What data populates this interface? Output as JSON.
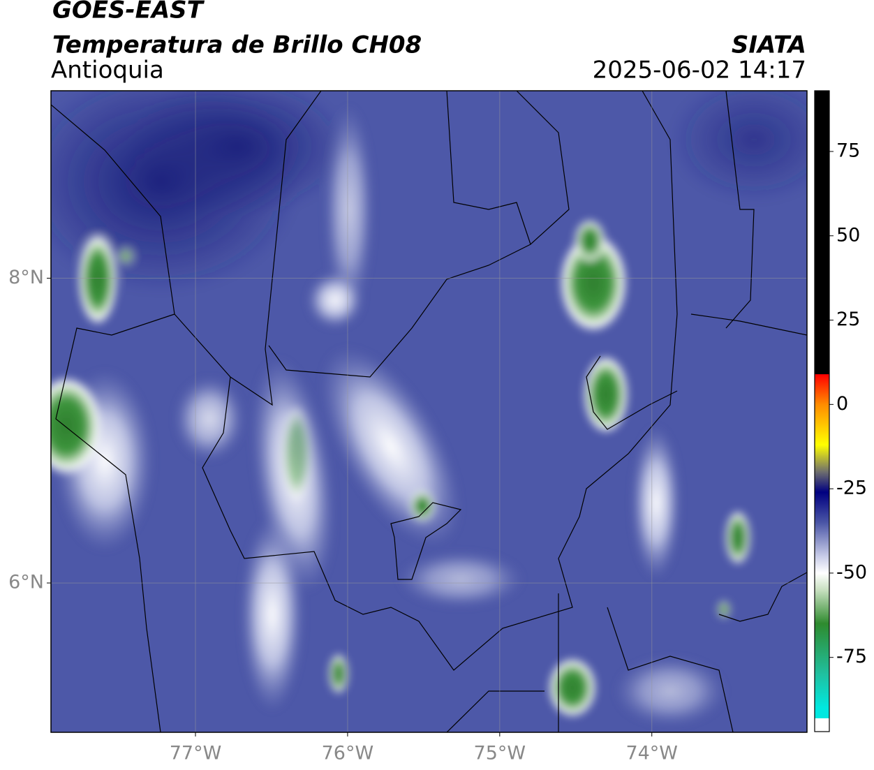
{
  "header": {
    "title": "GOES-EAST",
    "subtitle": "Temperatura de Brillo CH08",
    "source": "SIATA",
    "region": "Antioquia",
    "timestamp": "2025-06-02 14:17"
  },
  "map": {
    "xlim": [
      -77.95,
      -72.98
    ],
    "ylim": [
      5.02,
      9.23
    ],
    "xticks": [
      {
        "value": -77,
        "label": "77°W"
      },
      {
        "value": -76,
        "label": "76°W"
      },
      {
        "value": -75,
        "label": "75°W"
      },
      {
        "value": -74,
        "label": "74°W"
      }
    ],
    "yticks": [
      {
        "value": 8,
        "label": "8°N"
      },
      {
        "value": 6,
        "label": "6°N"
      }
    ],
    "grid": true
  },
  "colorbar": {
    "lim": [
      -97,
      93
    ],
    "ticks": [
      75,
      50,
      25,
      0,
      -25,
      -50,
      -75
    ],
    "colormap": [
      {
        "value": 93,
        "color": "#000000"
      },
      {
        "value": 9,
        "color": "#000000"
      },
      {
        "value": 8.9,
        "color": "#ff0000"
      },
      {
        "value": 0,
        "color": "#ff8c00"
      },
      {
        "value": -12,
        "color": "#ffff00"
      },
      {
        "value": -20,
        "color": "#6e6e6e"
      },
      {
        "value": -26,
        "color": "#000080"
      },
      {
        "value": -35,
        "color": "#4a55a6"
      },
      {
        "value": -45,
        "color": "#c8cce8"
      },
      {
        "value": -50,
        "color": "#ffffff"
      },
      {
        "value": -55,
        "color": "#c8e0c0"
      },
      {
        "value": -65,
        "color": "#2e8b2e"
      },
      {
        "value": -80,
        "color": "#20c0a0"
      },
      {
        "value": -90,
        "color": "#00e8e0"
      },
      {
        "value": -93,
        "color": "#00e8e0"
      },
      {
        "value": -93.1,
        "color": "#ffffff"
      },
      {
        "value": -97,
        "color": "#ffffff"
      }
    ]
  }
}
